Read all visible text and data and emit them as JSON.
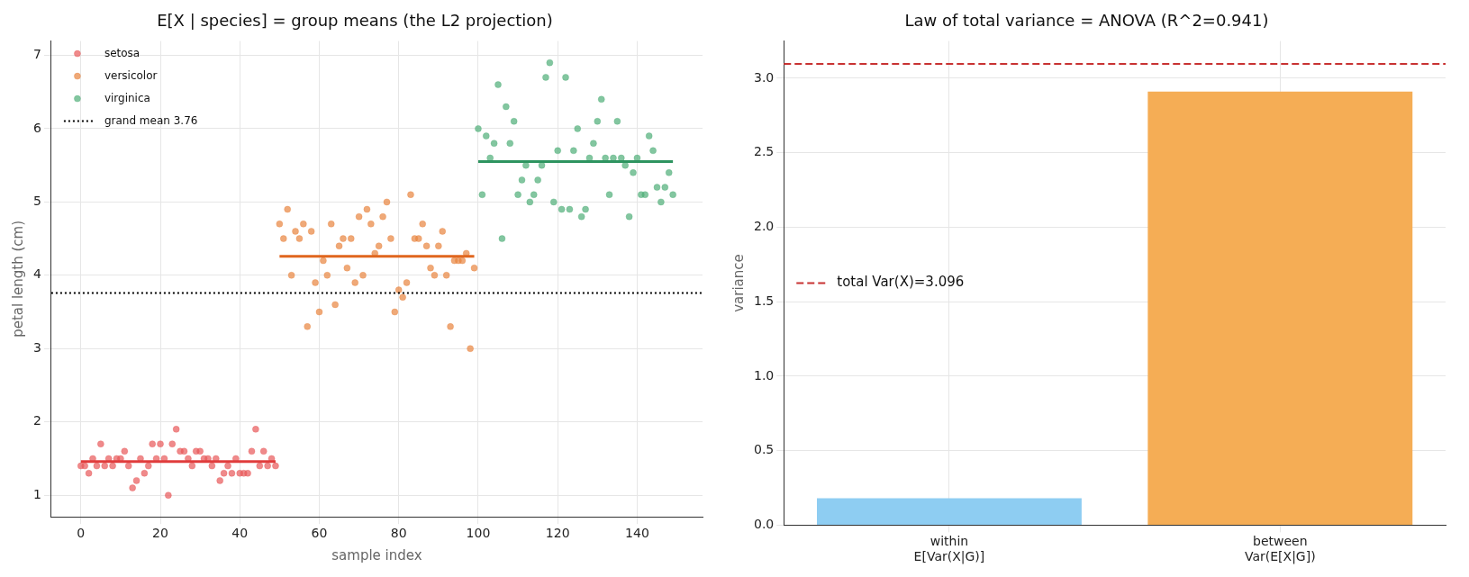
{
  "chart_data": [
    {
      "type": "scatter",
      "title": "E[X | species] = group means (the L2 projection)",
      "xlabel": "sample index",
      "ylabel": "petal length (cm)",
      "xlim": [
        -7.45,
        156.45
      ],
      "ylim": [
        0.705,
        7.195
      ],
      "xticks": [
        0,
        20,
        40,
        60,
        80,
        100,
        120,
        140
      ],
      "yticks": [
        1,
        2,
        3,
        4,
        5,
        6,
        7
      ],
      "grid": true,
      "legend": "top left",
      "marker": "circle",
      "series": [
        {
          "name": "setosa",
          "color": "#e8585a",
          "x": [
            0,
            1,
            2,
            3,
            4,
            5,
            6,
            7,
            8,
            9,
            10,
            11,
            12,
            13,
            14,
            15,
            16,
            17,
            18,
            19,
            20,
            21,
            22,
            23,
            24,
            25,
            26,
            27,
            28,
            29,
            30,
            31,
            32,
            33,
            34,
            35,
            36,
            37,
            38,
            39,
            40,
            41,
            42,
            43,
            44,
            45,
            46,
            47,
            48,
            49
          ],
          "values": [
            1.4,
            1.4,
            1.3,
            1.5,
            1.4,
            1.7,
            1.4,
            1.5,
            1.4,
            1.5,
            1.5,
            1.6,
            1.4,
            1.1,
            1.2,
            1.5,
            1.3,
            1.4,
            1.7,
            1.5,
            1.7,
            1.5,
            1.0,
            1.7,
            1.9,
            1.6,
            1.6,
            1.5,
            1.4,
            1.6,
            1.6,
            1.5,
            1.5,
            1.4,
            1.5,
            1.2,
            1.3,
            1.4,
            1.3,
            1.5,
            1.3,
            1.3,
            1.3,
            1.6,
            1.9,
            1.4,
            1.6,
            1.4,
            1.5,
            1.4
          ]
        },
        {
          "name": "versicolor",
          "color": "#e8843e",
          "x": [
            50,
            51,
            52,
            53,
            54,
            55,
            56,
            57,
            58,
            59,
            60,
            61,
            62,
            63,
            64,
            65,
            66,
            67,
            68,
            69,
            70,
            71,
            72,
            73,
            74,
            75,
            76,
            77,
            78,
            79,
            80,
            81,
            82,
            83,
            84,
            85,
            86,
            87,
            88,
            89,
            90,
            91,
            92,
            93,
            94,
            95,
            96,
            97,
            98,
            99
          ],
          "values": [
            4.7,
            4.5,
            4.9,
            4.0,
            4.6,
            4.5,
            4.7,
            3.3,
            4.6,
            3.9,
            3.5,
            4.2,
            4.0,
            4.7,
            3.6,
            4.4,
            4.5,
            4.1,
            4.5,
            3.9,
            4.8,
            4.0,
            4.9,
            4.7,
            4.3,
            4.4,
            4.8,
            5.0,
            4.5,
            3.5,
            3.8,
            3.7,
            3.9,
            5.1,
            4.5,
            4.5,
            4.7,
            4.4,
            4.1,
            4.0,
            4.4,
            4.6,
            4.0,
            3.3,
            4.2,
            4.2,
            4.2,
            4.3,
            3.0,
            4.1
          ]
        },
        {
          "name": "virginica",
          "color": "#4fae78",
          "x": [
            100,
            101,
            102,
            103,
            104,
            105,
            106,
            107,
            108,
            109,
            110,
            111,
            112,
            113,
            114,
            115,
            116,
            117,
            118,
            119,
            120,
            121,
            122,
            123,
            124,
            125,
            126,
            127,
            128,
            129,
            130,
            131,
            132,
            133,
            134,
            135,
            136,
            137,
            138,
            139,
            140,
            141,
            142,
            143,
            144,
            145,
            146,
            147,
            148,
            149
          ],
          "values": [
            6.0,
            5.1,
            5.9,
            5.6,
            5.8,
            6.6,
            4.5,
            6.3,
            5.8,
            6.1,
            5.1,
            5.3,
            5.5,
            5.0,
            5.1,
            5.3,
            5.5,
            6.7,
            6.9,
            5.0,
            5.7,
            4.9,
            6.7,
            4.9,
            5.7,
            6.0,
            4.8,
            4.9,
            5.6,
            5.8,
            6.1,
            6.4,
            5.6,
            5.1,
            5.6,
            6.1,
            5.6,
            5.5,
            4.8,
            5.4,
            5.6,
            5.1,
            5.1,
            5.9,
            5.7,
            5.2,
            5.0,
            5.2,
            5.4,
            5.1
          ]
        },
        {
          "type": "line",
          "marker": "none",
          "color": "#e03c3c",
          "x": [
            0,
            49
          ],
          "values": [
            1.46,
            1.46
          ]
        },
        {
          "type": "line",
          "marker": "none",
          "color": "#e0661e",
          "x": [
            50,
            99
          ],
          "values": [
            4.26,
            4.26
          ]
        },
        {
          "type": "line",
          "marker": "none",
          "color": "#2e9460",
          "x": [
            100,
            149
          ],
          "values": [
            5.55,
            5.55
          ]
        }
      ],
      "ref_lines": [
        {
          "axis": "y",
          "value": 3.758,
          "label": "grand mean 3.76",
          "color": "#000000",
          "line_style": "dotted"
        }
      ]
    },
    {
      "type": "bar",
      "title": "Law of total variance = ANOVA (R^2=0.941)",
      "ylabel": "variance",
      "categories": [
        "within\nE[Var(X|G)]",
        "between\nVar(E[X|G])"
      ],
      "values": [
        0.18,
        2.91
      ],
      "colors": [
        "#8ecdf2",
        "#f5ad55"
      ],
      "ylim": [
        0,
        3.25
      ],
      "yticks": [
        {
          "value": 0,
          "label": "0.0"
        },
        {
          "value": 0.5,
          "label": "0.5"
        },
        {
          "value": 1,
          "label": "1.0"
        },
        {
          "value": 1.5,
          "label": "1.5"
        },
        {
          "value": 2,
          "label": "2.0"
        },
        {
          "value": 2.5,
          "label": "2.5"
        },
        {
          "value": 3,
          "label": "3.0"
        }
      ],
      "grid": true,
      "legend": "center left",
      "ref_lines": [
        {
          "axis": "y",
          "value": 3.096,
          "label": "total Var(X)=3.096",
          "color": "#c83232",
          "line_style": "dashed"
        }
      ]
    }
  ]
}
